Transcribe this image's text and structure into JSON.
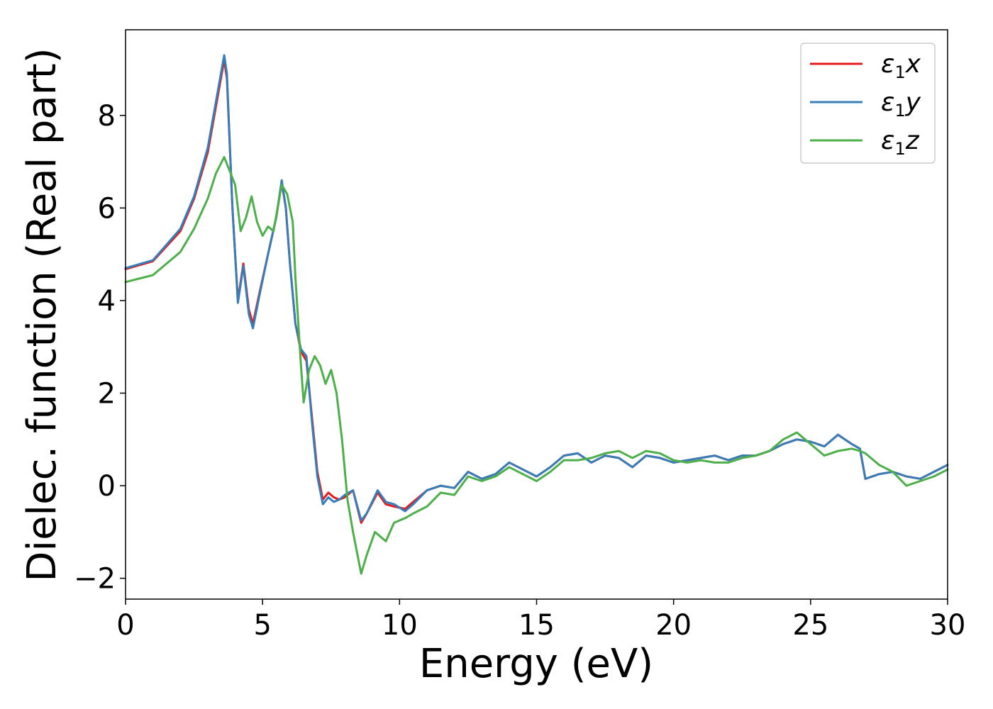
{
  "chart_data": {
    "type": "line",
    "xlabel": "Energy (eV)",
    "ylabel": "Dielec. function (Real part)",
    "xlim": [
      0,
      30
    ],
    "ylim": [
      -2.45,
      9.85
    ],
    "xticks": [
      0,
      5,
      10,
      15,
      20,
      25,
      30
    ],
    "xtick_labels": [
      "0",
      "5",
      "10",
      "15",
      "20",
      "25",
      "30"
    ],
    "yticks": [
      -2,
      0,
      2,
      4,
      6,
      8
    ],
    "ytick_labels": [
      "−2",
      "0",
      "2",
      "4",
      "6",
      "8"
    ],
    "grid": false,
    "legend_position": "top-right",
    "series": [
      {
        "name": "ε1x",
        "legend": {
          "base": "ε",
          "sub": "1",
          "var": "x"
        },
        "color": "#e41a1c",
        "x": [
          0,
          1,
          2,
          2.5,
          3,
          3.3,
          3.6,
          3.7,
          3.9,
          4.1,
          4.3,
          4.5,
          4.65,
          4.9,
          5.2,
          5.5,
          5.7,
          5.85,
          6.0,
          6.2,
          6.4,
          6.6,
          6.8,
          7.0,
          7.2,
          7.4,
          7.6,
          7.8,
          8.0,
          8.3,
          8.6,
          8.8,
          9.2,
          9.5,
          9.8,
          10.2,
          10.5,
          11,
          11.5,
          12,
          12.5,
          13,
          13.5,
          14,
          14.5,
          15,
          15.5,
          16,
          16.5,
          17,
          17.5,
          18,
          18.5,
          19,
          19.5,
          20,
          20.5,
          21,
          21.5,
          22,
          22.5,
          23,
          23.5,
          24,
          24.5,
          25,
          25.5,
          26,
          26.5,
          26.8,
          27,
          27.5,
          28,
          28.5,
          29,
          29.5,
          30
        ],
        "y": [
          4.68,
          4.85,
          5.5,
          6.2,
          7.2,
          8.2,
          9.2,
          8.8,
          6.0,
          4.0,
          4.8,
          3.8,
          3.5,
          4.2,
          5.0,
          5.8,
          6.55,
          6.0,
          4.8,
          3.5,
          2.9,
          2.7,
          1.5,
          0.3,
          -0.3,
          -0.15,
          -0.25,
          -0.3,
          -0.25,
          -0.1,
          -0.8,
          -0.6,
          -0.15,
          -0.4,
          -0.45,
          -0.5,
          -0.35,
          -0.1,
          0.0,
          -0.05,
          0.3,
          0.15,
          0.25,
          0.5,
          0.35,
          0.2,
          0.4,
          0.65,
          0.7,
          0.5,
          0.65,
          0.6,
          0.4,
          0.65,
          0.6,
          0.5,
          0.55,
          0.6,
          0.65,
          0.55,
          0.65,
          0.65,
          0.75,
          0.9,
          1.0,
          0.95,
          0.85,
          1.1,
          0.9,
          0.8,
          0.15,
          0.25,
          0.3,
          0.2,
          0.15,
          0.3,
          0.45
        ]
      },
      {
        "name": "ε1y",
        "legend": {
          "base": "ε",
          "sub": "1",
          "var": "y"
        },
        "color": "#377eb8",
        "x": [
          0,
          1,
          2,
          2.5,
          3,
          3.3,
          3.6,
          3.7,
          3.9,
          4.1,
          4.3,
          4.5,
          4.65,
          4.9,
          5.2,
          5.5,
          5.7,
          5.85,
          6.0,
          6.2,
          6.4,
          6.6,
          6.8,
          7.0,
          7.2,
          7.4,
          7.6,
          7.8,
          8.0,
          8.3,
          8.6,
          8.8,
          9.2,
          9.5,
          9.8,
          10.2,
          10.5,
          11,
          11.5,
          12,
          12.5,
          13,
          13.5,
          14,
          14.5,
          15,
          15.5,
          16,
          16.5,
          17,
          17.5,
          18,
          18.5,
          19,
          19.5,
          20,
          20.5,
          21,
          21.5,
          22,
          22.5,
          23,
          23.5,
          24,
          24.5,
          25,
          25.5,
          26,
          26.5,
          26.8,
          27,
          27.5,
          28,
          28.5,
          29,
          29.5,
          30
        ],
        "y": [
          4.7,
          4.87,
          5.55,
          6.25,
          7.3,
          8.3,
          9.3,
          8.9,
          6.0,
          3.95,
          4.75,
          3.7,
          3.4,
          4.15,
          5.0,
          5.8,
          6.6,
          6.0,
          4.8,
          3.5,
          2.95,
          2.8,
          1.4,
          0.2,
          -0.4,
          -0.25,
          -0.35,
          -0.3,
          -0.2,
          -0.1,
          -0.75,
          -0.6,
          -0.1,
          -0.35,
          -0.4,
          -0.55,
          -0.4,
          -0.1,
          0.0,
          -0.05,
          0.3,
          0.15,
          0.25,
          0.5,
          0.35,
          0.2,
          0.4,
          0.65,
          0.7,
          0.5,
          0.65,
          0.6,
          0.4,
          0.65,
          0.6,
          0.5,
          0.55,
          0.6,
          0.65,
          0.55,
          0.65,
          0.65,
          0.75,
          0.9,
          1.0,
          0.95,
          0.85,
          1.1,
          0.9,
          0.8,
          0.15,
          0.25,
          0.3,
          0.2,
          0.15,
          0.3,
          0.45
        ]
      },
      {
        "name": "ε1z",
        "legend": {
          "base": "ε",
          "sub": "1",
          "var": "z"
        },
        "color": "#4daf4a",
        "x": [
          0,
          1,
          2,
          2.5,
          3,
          3.3,
          3.6,
          3.8,
          4.0,
          4.2,
          4.4,
          4.6,
          4.8,
          5.0,
          5.2,
          5.4,
          5.7,
          5.9,
          6.1,
          6.2,
          6.4,
          6.5,
          6.7,
          6.9,
          7.1,
          7.3,
          7.5,
          7.7,
          7.9,
          8.1,
          8.3,
          8.6,
          8.8,
          9.1,
          9.5,
          9.8,
          10.2,
          10.5,
          11,
          11.5,
          12,
          12.5,
          13,
          13.5,
          14,
          14.5,
          15,
          15.5,
          16,
          16.5,
          17,
          17.5,
          18,
          18.5,
          19,
          19.5,
          20,
          20.5,
          21,
          21.5,
          22,
          22.5,
          23,
          23.5,
          24,
          24.5,
          25,
          25.5,
          26,
          26.5,
          26.8,
          27,
          27.5,
          28,
          28.5,
          29,
          29.5,
          30
        ],
        "y": [
          4.4,
          4.55,
          5.05,
          5.55,
          6.2,
          6.75,
          7.1,
          6.8,
          6.5,
          5.5,
          5.8,
          6.25,
          5.7,
          5.4,
          5.6,
          5.5,
          6.5,
          6.3,
          5.7,
          4.5,
          2.6,
          1.8,
          2.5,
          2.8,
          2.6,
          2.2,
          2.5,
          2.0,
          1.0,
          -0.3,
          -1.0,
          -1.9,
          -1.5,
          -1.0,
          -1.2,
          -0.8,
          -0.7,
          -0.6,
          -0.45,
          -0.15,
          -0.2,
          0.2,
          0.1,
          0.2,
          0.4,
          0.25,
          0.1,
          0.3,
          0.55,
          0.55,
          0.6,
          0.7,
          0.75,
          0.6,
          0.75,
          0.7,
          0.55,
          0.5,
          0.55,
          0.5,
          0.5,
          0.6,
          0.65,
          0.75,
          1.0,
          1.15,
          0.9,
          0.65,
          0.75,
          0.8,
          0.75,
          0.7,
          0.45,
          0.3,
          0.0,
          0.1,
          0.2,
          0.35
        ]
      }
    ]
  }
}
